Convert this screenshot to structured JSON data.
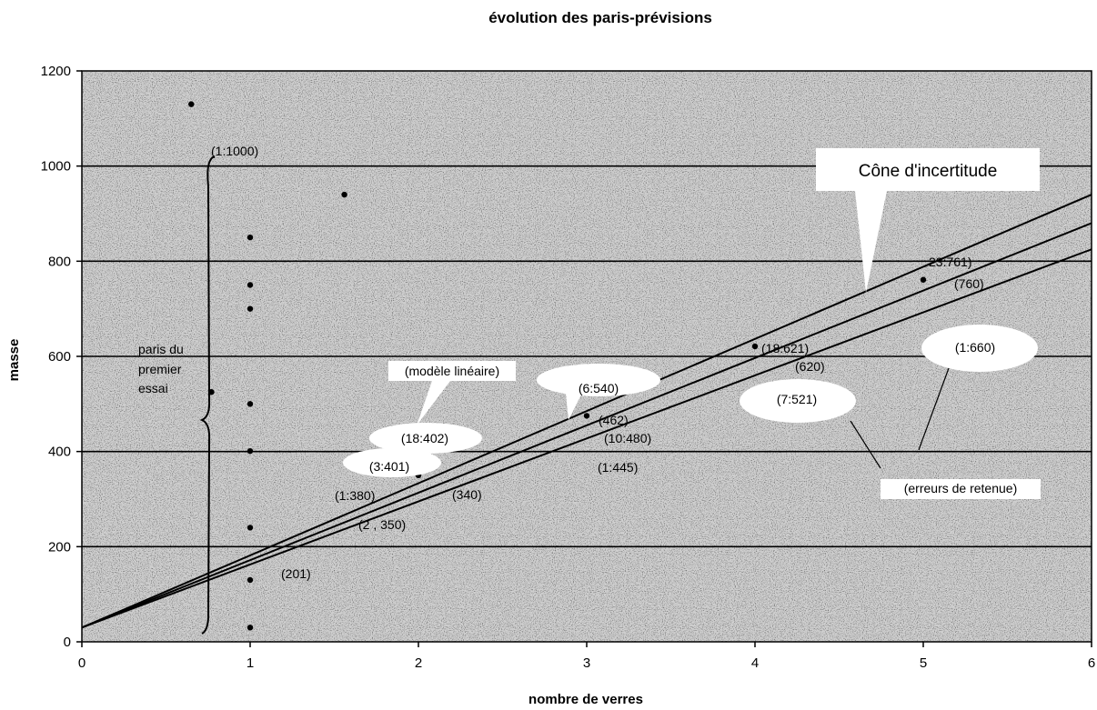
{
  "chart_data": {
    "type": "scatter",
    "title": "évolution des paris-prévisions",
    "xlabel": "nombre de verres",
    "ylabel": "masse",
    "xlim": [
      0,
      6
    ],
    "ylim": [
      0,
      1200
    ],
    "xticks": [
      "0",
      "1",
      "2",
      "3",
      "4",
      "5",
      "6"
    ],
    "yticks": [
      "0",
      "200",
      "400",
      "600",
      "800",
      "1000",
      "1200"
    ],
    "grid": "horizontal",
    "background": "noisy grey stipple",
    "points": [
      {
        "x": 0.65,
        "y": 1130
      },
      {
        "x": 0.77,
        "y": 525
      },
      {
        "x": 1.0,
        "y": 850
      },
      {
        "x": 1.0,
        "y": 750
      },
      {
        "x": 1.0,
        "y": 700
      },
      {
        "x": 1.0,
        "y": 500
      },
      {
        "x": 1.0,
        "y": 401
      },
      {
        "x": 1.0,
        "y": 240
      },
      {
        "x": 1.0,
        "y": 130
      },
      {
        "x": 1.0,
        "y": 30
      },
      {
        "x": 1.56,
        "y": 940
      },
      {
        "x": 2.0,
        "y": 350
      },
      {
        "x": 3.0,
        "y": 475
      },
      {
        "x": 4.0,
        "y": 621
      },
      {
        "x": 5.0,
        "y": 761
      }
    ],
    "lines": [
      {
        "x": [
          0,
          6
        ],
        "y": [
          30,
          940
        ]
      },
      {
        "x": [
          0,
          6
        ],
        "y": [
          30,
          880
        ]
      },
      {
        "x": [
          0,
          6
        ],
        "y": [
          30,
          825
        ]
      }
    ],
    "annotations": {
      "cone": "Cône d'incertitude",
      "first_bets": [
        "paris du",
        "premier",
        "essai"
      ],
      "a1000": "(1:1000)",
      "modele": "(modèle linéaire)",
      "a18_402": "(18:402)",
      "a3_401": "(3:401)",
      "a1_380": "(1:380)",
      "a2_350": "(2 , 350)",
      "a340": "(340)",
      "a201": "(201)",
      "a6_540": "(6:540)",
      "a462": "(462)",
      "a10_480": "(10:480)",
      "a1_445": "(1:445)",
      "a7_521": "(7:521)",
      "a1_660": "(1:660)",
      "a18_621": "(18:621)",
      "a620": "(620)",
      "a23_761": "23:761)",
      "a760": "(760)",
      "erreurs": "(erreurs de retenue)"
    }
  }
}
